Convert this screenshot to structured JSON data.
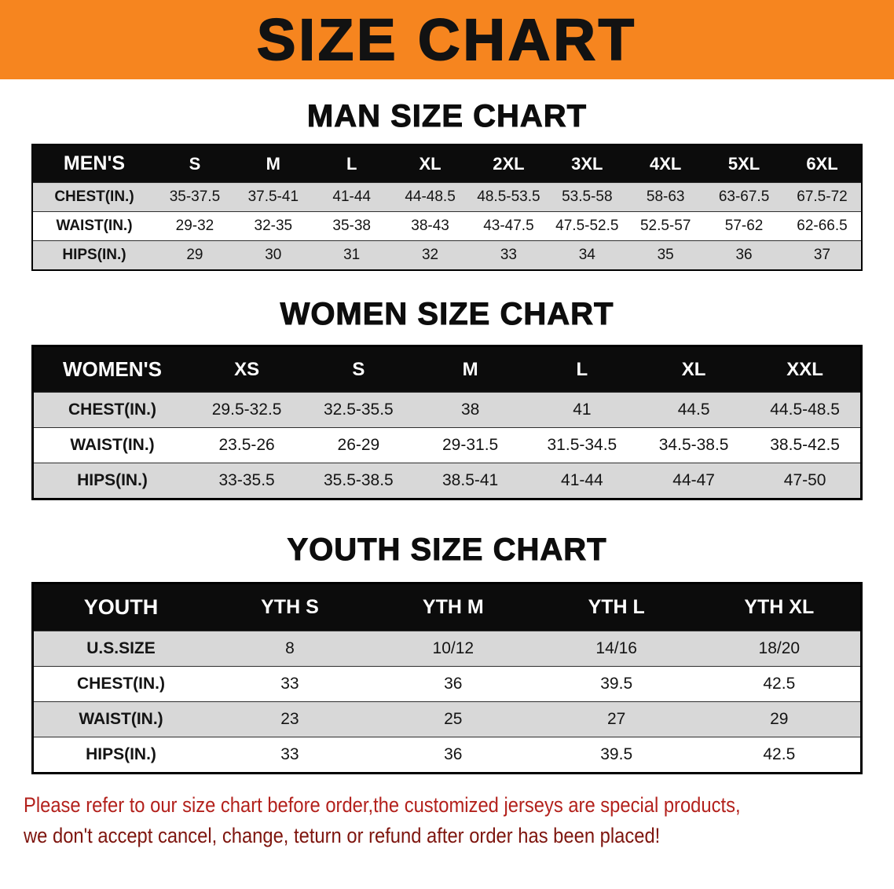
{
  "banner": {
    "title": "SIZE CHART",
    "bg_color": "#f6851f",
    "text_color": "#121212"
  },
  "sections": [
    {
      "id": "men",
      "heading": "MAN SIZE CHART",
      "table": {
        "header": [
          "MEN'S",
          "S",
          "M",
          "L",
          "XL",
          "2XL",
          "3XL",
          "4XL",
          "5XL",
          "6XL"
        ],
        "rows": [
          {
            "label": "CHEST(IN.)",
            "values": [
              "35-37.5",
              "37.5-41",
              "41-44",
              "44-48.5",
              "48.5-53.5",
              "53.5-58",
              "58-63",
              "63-67.5",
              "67.5-72"
            ]
          },
          {
            "label": "WAIST(IN.)",
            "values": [
              "29-32",
              "32-35",
              "35-38",
              "38-43",
              "43-47.5",
              "47.5-52.5",
              "52.5-57",
              "57-62",
              "62-66.5"
            ]
          },
          {
            "label": "HIPS(IN.)",
            "values": [
              "29",
              "30",
              "31",
              "32",
              "33",
              "34",
              "35",
              "36",
              "37"
            ]
          }
        ]
      }
    },
    {
      "id": "women",
      "heading": "WOMEN SIZE CHART",
      "table": {
        "header": [
          "WOMEN'S",
          "XS",
          "S",
          "M",
          "L",
          "XL",
          "XXL"
        ],
        "rows": [
          {
            "label": "CHEST(IN.)",
            "values": [
              "29.5-32.5",
              "32.5-35.5",
              "38",
              "41",
              "44.5",
              "44.5-48.5"
            ]
          },
          {
            "label": "WAIST(IN.)",
            "values": [
              "23.5-26",
              "26-29",
              "29-31.5",
              "31.5-34.5",
              "34.5-38.5",
              "38.5-42.5"
            ]
          },
          {
            "label": "HIPS(IN.)",
            "values": [
              "33-35.5",
              "35.5-38.5",
              "38.5-41",
              "41-44",
              "44-47",
              "47-50"
            ]
          }
        ]
      }
    },
    {
      "id": "youth",
      "heading": "YOUTH SIZE CHART",
      "table": {
        "header": [
          "YOUTH",
          "YTH S",
          "YTH M",
          "YTH L",
          "YTH XL"
        ],
        "rows": [
          {
            "label": "U.S.SIZE",
            "values": [
              "8",
              "10/12",
              "14/16",
              "18/20"
            ]
          },
          {
            "label": "CHEST(IN.)",
            "values": [
              "33",
              "36",
              "39.5",
              "42.5"
            ]
          },
          {
            "label": "WAIST(IN.)",
            "values": [
              "23",
              "25",
              "27",
              "29"
            ]
          },
          {
            "label": "HIPS(IN.)",
            "values": [
              "33",
              "36",
              "39.5",
              "42.5"
            ]
          }
        ]
      }
    }
  ],
  "footer": {
    "line1": "Please refer to our size chart before order,the customized jerseys are special products,",
    "line2": "we don't accept cancel, change, teturn or refund after order has been placed!",
    "line1_color": "#b3211c",
    "line2_color": "#7e150e"
  },
  "colors": {
    "row_alt_gray": "#d8d8d8",
    "table_header_bg": "#0c0c0c"
  }
}
